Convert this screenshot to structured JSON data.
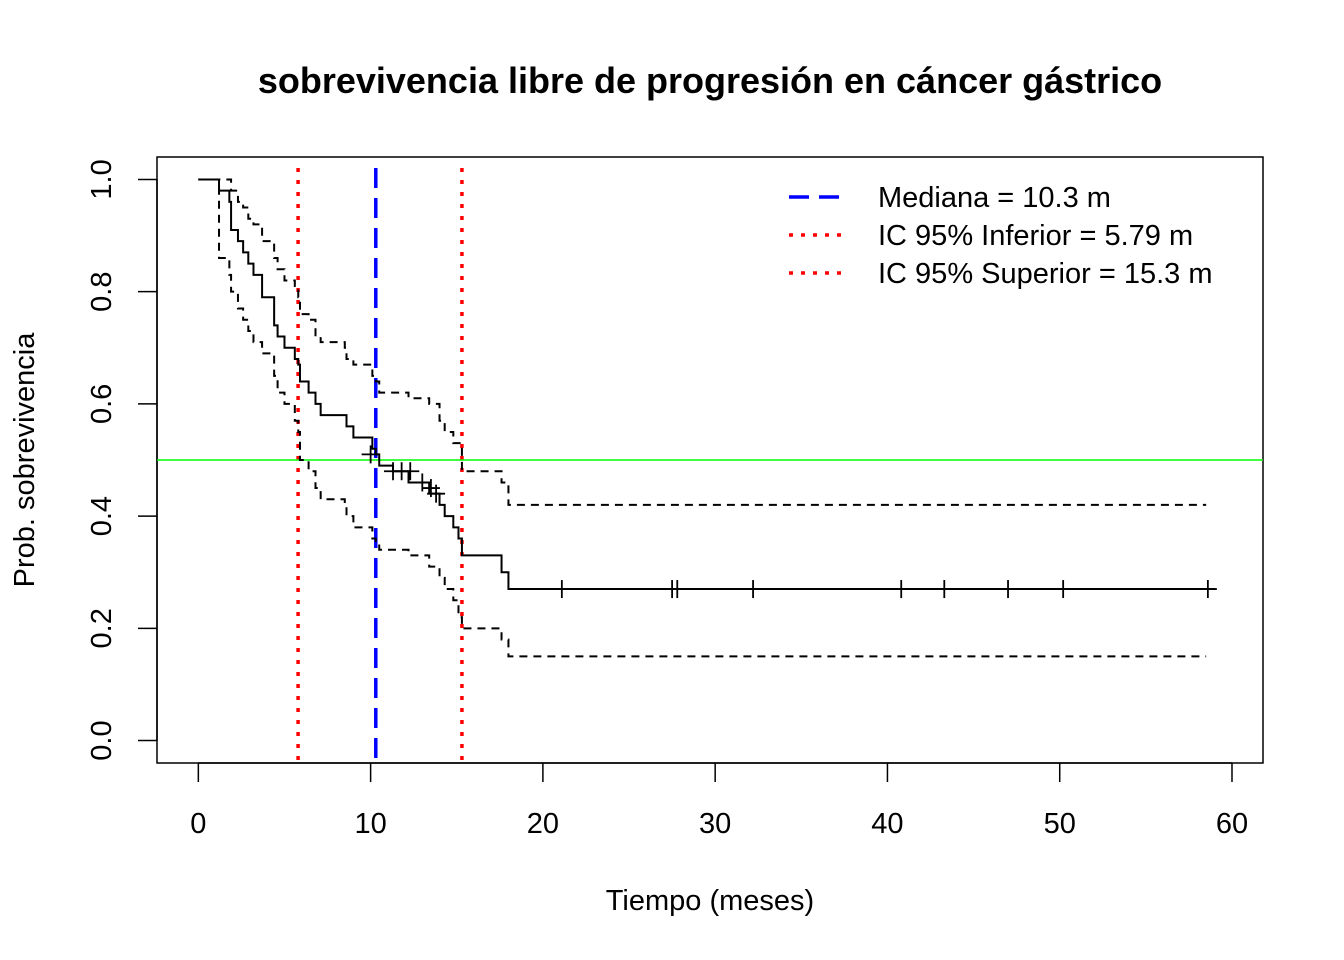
{
  "chart_data": {
    "type": "line",
    "title": "sobrevivencia libre de progresión en cáncer gástrico",
    "xlabel": "Tiempo (meses)",
    "ylabel": "Prob. sobrevivencia",
    "xlim": [
      -2.4,
      61.8
    ],
    "ylim": [
      -0.04,
      1.04
    ],
    "x_ticks": [
      "0",
      "10",
      "20",
      "30",
      "40",
      "50",
      "60"
    ],
    "y_ticks": [
      "0.0",
      "0.2",
      "0.4",
      "0.6",
      "0.8",
      "1.0"
    ],
    "series": [
      {
        "style": "solid",
        "color": "#000000",
        "steps": [
          [
            0,
            1.0
          ],
          [
            1.2,
            0.98
          ],
          [
            1.8,
            0.96
          ],
          [
            1.9,
            0.91
          ],
          [
            2.3,
            0.89
          ],
          [
            2.6,
            0.87
          ],
          [
            2.9,
            0.85
          ],
          [
            3.2,
            0.83
          ],
          [
            3.7,
            0.79
          ],
          [
            3.8,
            0.79
          ],
          [
            3.9,
            0.79
          ],
          [
            4.0,
            0.79
          ],
          [
            4.4,
            0.74
          ],
          [
            4.6,
            0.72
          ],
          [
            5.0,
            0.7
          ],
          [
            5.6,
            0.68
          ],
          [
            5.8,
            0.67
          ],
          [
            5.9,
            0.64
          ],
          [
            6.4,
            0.62
          ],
          [
            6.8,
            0.6
          ],
          [
            7.1,
            0.58
          ],
          [
            8.5,
            0.58
          ],
          [
            8.6,
            0.56
          ],
          [
            9.0,
            0.54
          ],
          [
            10.1,
            0.52
          ],
          [
            10.3,
            0.51
          ],
          [
            10.5,
            0.49
          ],
          [
            11.3,
            0.48
          ],
          [
            12.2,
            0.46
          ],
          [
            13.4,
            0.44
          ],
          [
            14.0,
            0.42
          ],
          [
            14.3,
            0.4
          ],
          [
            14.8,
            0.38
          ],
          [
            15.1,
            0.36
          ],
          [
            15.3,
            0.33
          ],
          [
            17.6,
            0.3
          ],
          [
            18.0,
            0.27
          ],
          [
            59.0,
            0.27
          ]
        ]
      },
      {
        "style": "dashed",
        "color": "#000000",
        "steps": [
          [
            0,
            1.0
          ],
          [
            1.2,
            0.86
          ],
          [
            1.8,
            0.83
          ],
          [
            1.9,
            0.8
          ],
          [
            2.3,
            0.77
          ],
          [
            2.6,
            0.75
          ],
          [
            2.9,
            0.73
          ],
          [
            3.2,
            0.71
          ],
          [
            3.7,
            0.69
          ],
          [
            4.4,
            0.65
          ],
          [
            4.6,
            0.62
          ],
          [
            5.0,
            0.6
          ],
          [
            5.6,
            0.57
          ],
          [
            5.8,
            0.55
          ],
          [
            5.9,
            0.5
          ],
          [
            6.4,
            0.48
          ],
          [
            6.8,
            0.45
          ],
          [
            7.1,
            0.43
          ],
          [
            8.5,
            0.42
          ],
          [
            8.6,
            0.4
          ],
          [
            9.0,
            0.38
          ],
          [
            10.1,
            0.36
          ],
          [
            10.3,
            0.35
          ],
          [
            10.5,
            0.34
          ],
          [
            12.2,
            0.33
          ],
          [
            13.4,
            0.31
          ],
          [
            14.0,
            0.29
          ],
          [
            14.3,
            0.27
          ],
          [
            14.8,
            0.25
          ],
          [
            15.1,
            0.22
          ],
          [
            15.3,
            0.2
          ],
          [
            17.6,
            0.18
          ],
          [
            18.0,
            0.15
          ],
          [
            58.5,
            0.15
          ]
        ]
      },
      {
        "style": "dashed",
        "color": "#000000",
        "steps": [
          [
            0,
            1.0
          ],
          [
            1.2,
            1.0
          ],
          [
            1.8,
            1.0
          ],
          [
            1.9,
            0.98
          ],
          [
            2.3,
            0.96
          ],
          [
            2.6,
            0.95
          ],
          [
            2.9,
            0.93
          ],
          [
            3.2,
            0.92
          ],
          [
            3.7,
            0.89
          ],
          [
            4.4,
            0.86
          ],
          [
            4.6,
            0.84
          ],
          [
            5.0,
            0.82
          ],
          [
            5.6,
            0.81
          ],
          [
            5.8,
            0.79
          ],
          [
            5.9,
            0.76
          ],
          [
            6.4,
            0.75
          ],
          [
            6.8,
            0.72
          ],
          [
            7.1,
            0.71
          ],
          [
            8.5,
            0.7
          ],
          [
            8.6,
            0.68
          ],
          [
            9.0,
            0.67
          ],
          [
            10.1,
            0.65
          ],
          [
            10.3,
            0.64
          ],
          [
            10.5,
            0.62
          ],
          [
            12.2,
            0.61
          ],
          [
            13.4,
            0.6
          ],
          [
            14.0,
            0.57
          ],
          [
            14.3,
            0.55
          ],
          [
            14.8,
            0.53
          ],
          [
            15.3,
            0.48
          ],
          [
            17.6,
            0.46
          ],
          [
            18.0,
            0.42
          ],
          [
            58.5,
            0.42
          ]
        ]
      }
    ],
    "censor_marks": [
      [
        10.0,
        0.51
      ],
      [
        11.3,
        0.48
      ],
      [
        11.8,
        0.48
      ],
      [
        12.3,
        0.48
      ],
      [
        13.0,
        0.46
      ],
      [
        13.5,
        0.45
      ],
      [
        13.8,
        0.44
      ],
      [
        21.1,
        0.27
      ],
      [
        27.5,
        0.27
      ],
      [
        27.8,
        0.27
      ],
      [
        32.2,
        0.27
      ],
      [
        40.8,
        0.27
      ],
      [
        43.3,
        0.27
      ],
      [
        47.0,
        0.27
      ],
      [
        50.2,
        0.27
      ],
      [
        58.6,
        0.27
      ]
    ],
    "reference_lines": [
      {
        "orientation": "vertical",
        "x": 10.3,
        "color": "#0000ff",
        "style": "longdash"
      },
      {
        "orientation": "vertical",
        "x": 5.79,
        "color": "#ff0000",
        "style": "dotted"
      },
      {
        "orientation": "vertical",
        "x": 15.3,
        "color": "#ff0000",
        "style": "dotted"
      },
      {
        "orientation": "horizontal",
        "y": 0.5,
        "color": "#00ff00",
        "style": "solid"
      }
    ],
    "legend": {
      "position": "top-right",
      "entries": [
        {
          "label": "Mediana = 10.3 m",
          "color": "#0000ff",
          "style": "longdash"
        },
        {
          "label": "IC 95% Inferior = 5.79 m",
          "color": "#ff0000",
          "style": "dotted"
        },
        {
          "label": "IC 95% Superior = 15.3 m",
          "color": "#ff0000",
          "style": "dotted"
        }
      ]
    },
    "grid": false
  }
}
